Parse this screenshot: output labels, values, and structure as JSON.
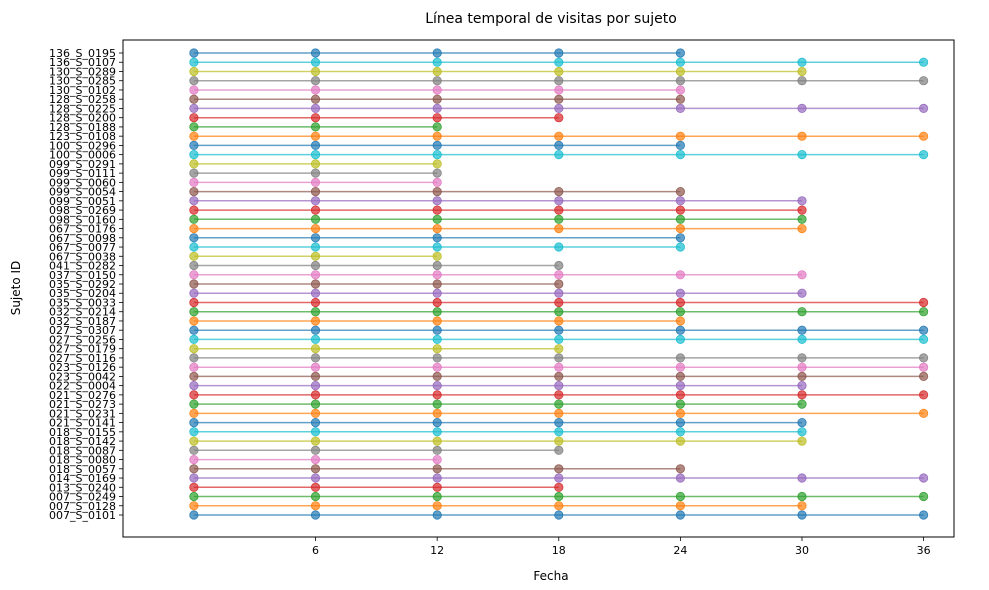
{
  "chart_data": {
    "type": "line",
    "title": "Línea temporal de visitas por sujeto",
    "xlabel": "Fecha",
    "ylabel": "Sujeto ID",
    "xticks": [
      6,
      12,
      18,
      24,
      30,
      36
    ],
    "xlim": [
      -3.5,
      37.5
    ],
    "grid": false,
    "legend": "none",
    "colors": [
      "#1f77b4",
      "#ff7f0e",
      "#2ca02c",
      "#d62728",
      "#9467bd",
      "#8c564b",
      "#e377c2",
      "#7f7f7f",
      "#bcbd22",
      "#17becf"
    ],
    "series": [
      {
        "name": "007_S_0101",
        "x": [
          0,
          6,
          12,
          18,
          24,
          30,
          36
        ]
      },
      {
        "name": "007_S_0128",
        "x": [
          0,
          6,
          12,
          18,
          24,
          30
        ]
      },
      {
        "name": "007_S_0249",
        "x": [
          0,
          6,
          12,
          18,
          24,
          30,
          36
        ]
      },
      {
        "name": "013_S_0240",
        "x": [
          0,
          6,
          12,
          18
        ]
      },
      {
        "name": "014_S_0169",
        "x": [
          0,
          6,
          12,
          18,
          24,
          30,
          36
        ]
      },
      {
        "name": "018_S_0057",
        "x": [
          0,
          6,
          12,
          18,
          24
        ]
      },
      {
        "name": "018_S_0080",
        "x": [
          0,
          6,
          12
        ]
      },
      {
        "name": "018_S_0087",
        "x": [
          0,
          6,
          12,
          18
        ]
      },
      {
        "name": "018_S_0142",
        "x": [
          0,
          6,
          12,
          18,
          24,
          30
        ]
      },
      {
        "name": "018_S_0155",
        "x": [
          0,
          6,
          12,
          18,
          24,
          30
        ]
      },
      {
        "name": "021_S_0141",
        "x": [
          0,
          6,
          12,
          18,
          24,
          30
        ]
      },
      {
        "name": "021_S_0231",
        "x": [
          0,
          6,
          12,
          18,
          24,
          36
        ]
      },
      {
        "name": "021_S_0273",
        "x": [
          0,
          6,
          12,
          18,
          24,
          30
        ]
      },
      {
        "name": "021_S_0276",
        "x": [
          0,
          6,
          12,
          18,
          24,
          30,
          36
        ]
      },
      {
        "name": "022_S_0004",
        "x": [
          0,
          6,
          12,
          18,
          24,
          30
        ]
      },
      {
        "name": "023_S_0042",
        "x": [
          0,
          6,
          12,
          18,
          24,
          30,
          36
        ]
      },
      {
        "name": "023_S_0126",
        "x": [
          0,
          6,
          12,
          18,
          24,
          30,
          36
        ]
      },
      {
        "name": "027_S_0116",
        "x": [
          0,
          6,
          12,
          18,
          24,
          30,
          36
        ]
      },
      {
        "name": "027_S_0179",
        "x": [
          0,
          6,
          12,
          18
        ]
      },
      {
        "name": "027_S_0256",
        "x": [
          0,
          6,
          12,
          18,
          24,
          30,
          36
        ]
      },
      {
        "name": "027_S_0307",
        "x": [
          0,
          6,
          12,
          18,
          24,
          30,
          36
        ]
      },
      {
        "name": "032_S_0187",
        "x": [
          0,
          6,
          12,
          18,
          24
        ]
      },
      {
        "name": "032_S_0214",
        "x": [
          0,
          6,
          12,
          18,
          24,
          30,
          36
        ]
      },
      {
        "name": "035_S_0033",
        "x": [
          0,
          6,
          12,
          18,
          24,
          36
        ]
      },
      {
        "name": "035_S_0204",
        "x": [
          0,
          6,
          12,
          18,
          24,
          30
        ]
      },
      {
        "name": "035_S_0292",
        "x": [
          0,
          6,
          12,
          18
        ]
      },
      {
        "name": "037_S_0150",
        "x": [
          0,
          6,
          12,
          18,
          24,
          30
        ]
      },
      {
        "name": "041_S_0282",
        "x": [
          0,
          6,
          12,
          18
        ]
      },
      {
        "name": "067_S_0038",
        "x": [
          0,
          6,
          12
        ]
      },
      {
        "name": "067_S_0077",
        "x": [
          0,
          6,
          12,
          18,
          24
        ]
      },
      {
        "name": "067_S_0098",
        "x": [
          0,
          6,
          12,
          24
        ]
      },
      {
        "name": "067_S_0176",
        "x": [
          0,
          6,
          12,
          18,
          24,
          30
        ]
      },
      {
        "name": "098_S_0160",
        "x": [
          0,
          6,
          12,
          18,
          24,
          30
        ]
      },
      {
        "name": "098_S_0269",
        "x": [
          0,
          6,
          12,
          18,
          24,
          30
        ]
      },
      {
        "name": "099_S_0051",
        "x": [
          0,
          6,
          12,
          18,
          24,
          30
        ]
      },
      {
        "name": "099_S_0054",
        "x": [
          0,
          6,
          12,
          18,
          24
        ]
      },
      {
        "name": "099_S_0060",
        "x": [
          0,
          6,
          12
        ]
      },
      {
        "name": "099_S_0111",
        "x": [
          0,
          6,
          12
        ]
      },
      {
        "name": "099_S_0291",
        "x": [
          0,
          6,
          12
        ]
      },
      {
        "name": "100_S_0006",
        "x": [
          0,
          6,
          12,
          18,
          24,
          30,
          36
        ]
      },
      {
        "name": "100_S_0296",
        "x": [
          0,
          6,
          12,
          18,
          24
        ]
      },
      {
        "name": "123_S_0108",
        "x": [
          0,
          6,
          12,
          18,
          24,
          30,
          36
        ]
      },
      {
        "name": "128_S_0188",
        "x": [
          0,
          6,
          12
        ]
      },
      {
        "name": "128_S_0200",
        "x": [
          0,
          6,
          12,
          18
        ]
      },
      {
        "name": "128_S_0225",
        "x": [
          0,
          6,
          12,
          18,
          24,
          30,
          36
        ]
      },
      {
        "name": "128_S_0258",
        "x": [
          0,
          6,
          12,
          18,
          24
        ]
      },
      {
        "name": "130_S_0102",
        "x": [
          0,
          6,
          12,
          18,
          24
        ]
      },
      {
        "name": "130_S_0285",
        "x": [
          0,
          6,
          12,
          18,
          24,
          30,
          36
        ]
      },
      {
        "name": "130_S_0289",
        "x": [
          0,
          6,
          12,
          18,
          24,
          30
        ]
      },
      {
        "name": "136_S_0107",
        "x": [
          0,
          6,
          12,
          18,
          24,
          30,
          36
        ]
      },
      {
        "name": "136_S_0195",
        "x": [
          0,
          6,
          12,
          18,
          24
        ]
      }
    ]
  }
}
